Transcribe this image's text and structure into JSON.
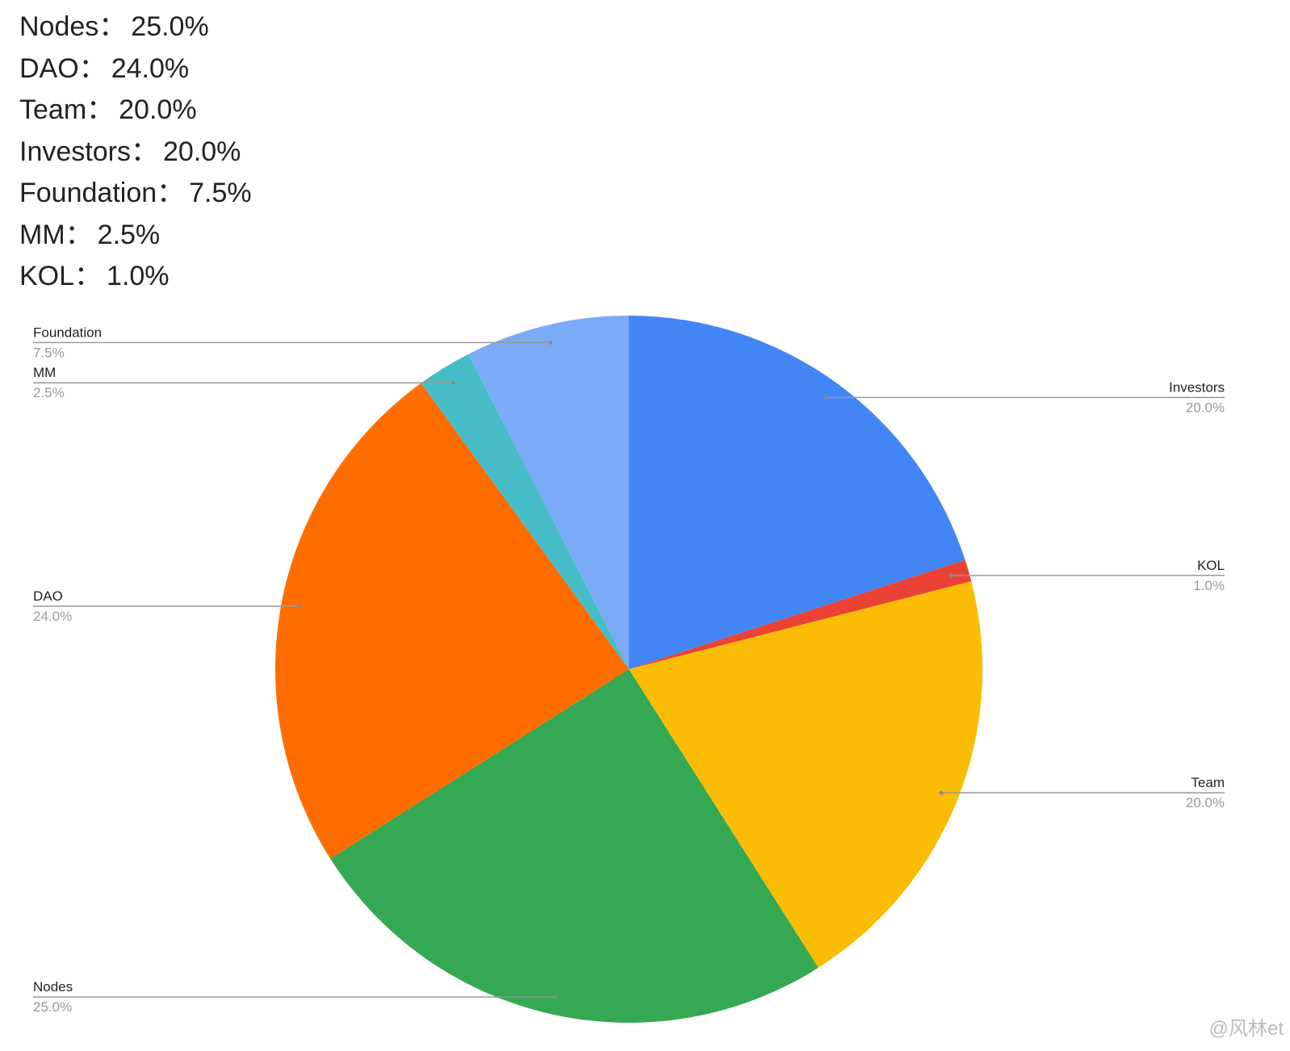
{
  "summary": [
    {
      "name": "Nodes：",
      "value": "25.0%"
    },
    {
      "name": "DAO：",
      "value": "24.0%"
    },
    {
      "name": "Team：",
      "value": "20.0%"
    },
    {
      "name": "Investors：",
      "value": "20.0%"
    },
    {
      "name": "Foundation：",
      "value": "7.5%"
    },
    {
      "name": "MM：",
      "value": "2.5%"
    },
    {
      "name": "KOL：",
      "value": "1.0%"
    }
  ],
  "chart_data": {
    "type": "pie",
    "categories": [
      "Investors",
      "KOL",
      "Team",
      "Nodes",
      "DAO",
      "MM",
      "Foundation"
    ],
    "values": [
      20,
      1,
      20,
      25,
      24,
      2.5,
      7.5
    ],
    "value_labels": [
      "20.0%",
      "1.0%",
      "20.0%",
      "25.0%",
      "24.0%",
      "2.5%",
      "7.5%"
    ],
    "colors": [
      "#4285f4",
      "#ea4335",
      "#fbbc04",
      "#34a853",
      "#ff6d01",
      "#46bdc6",
      "#7baaf7"
    ]
  },
  "watermark": "@风林et"
}
